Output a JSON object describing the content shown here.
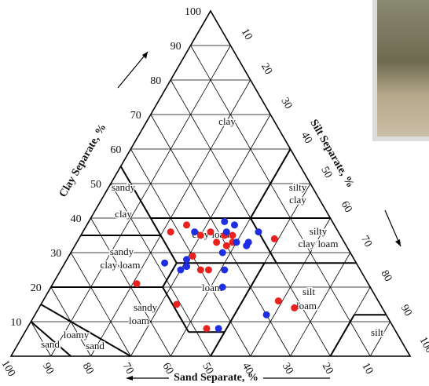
{
  "chart_data": {
    "type": "ternary",
    "grid": true,
    "axes": {
      "clay": {
        "label": "Clay Separate, %",
        "ticks": [
          10,
          20,
          30,
          40,
          50,
          60,
          70,
          80,
          90,
          100
        ]
      },
      "silt": {
        "label": "Silt Separate, %",
        "ticks": [
          10,
          20,
          30,
          40,
          50,
          60,
          70,
          80,
          90,
          100
        ]
      },
      "sand": {
        "label": "Sand Separate, %",
        "ticks": [
          100,
          90,
          80,
          70,
          60,
          50,
          40,
          30,
          20,
          10
        ]
      }
    },
    "regions": [
      {
        "lines": [
          "clay"
        ]
      },
      {
        "lines": [
          "sandy",
          "clay"
        ]
      },
      {
        "lines": [
          "silty",
          "clay"
        ]
      },
      {
        "lines": [
          "clay loam"
        ]
      },
      {
        "lines": [
          "silty",
          "clay loam"
        ]
      },
      {
        "lines": [
          "sandy",
          "clay loam"
        ]
      },
      {
        "lines": [
          "loam"
        ]
      },
      {
        "lines": [
          "silt",
          "loam"
        ]
      },
      {
        "lines": [
          "sandy",
          "loam"
        ]
      },
      {
        "lines": [
          "loamy",
          "sand"
        ]
      },
      {
        "lines": [
          "sand"
        ]
      },
      {
        "lines": [
          "silt"
        ]
      }
    ],
    "series": [
      {
        "color": "#e8221e",
        "sand": [
          42,
          37,
          35,
          32,
          32,
          29,
          30,
          27,
          28,
          40,
          40,
          38,
          17,
          58,
          51,
          25,
          22,
          47
        ],
        "clay": [
          36,
          38,
          35,
          36,
          33,
          35,
          32,
          35,
          33,
          29,
          25,
          25,
          34,
          21,
          15,
          16,
          14,
          8
        ]
      },
      {
        "color": "#1f2ee0",
        "sand": [
          27,
          25,
          36,
          28,
          27,
          25,
          24,
          20,
          32,
          48,
          45,
          43,
          42,
          34,
          37,
          44,
          30
        ],
        "clay": [
          39,
          38,
          36,
          36,
          33,
          32,
          33,
          36,
          30,
          27,
          25,
          26,
          28,
          25,
          20,
          8,
          12
        ]
      }
    ]
  }
}
